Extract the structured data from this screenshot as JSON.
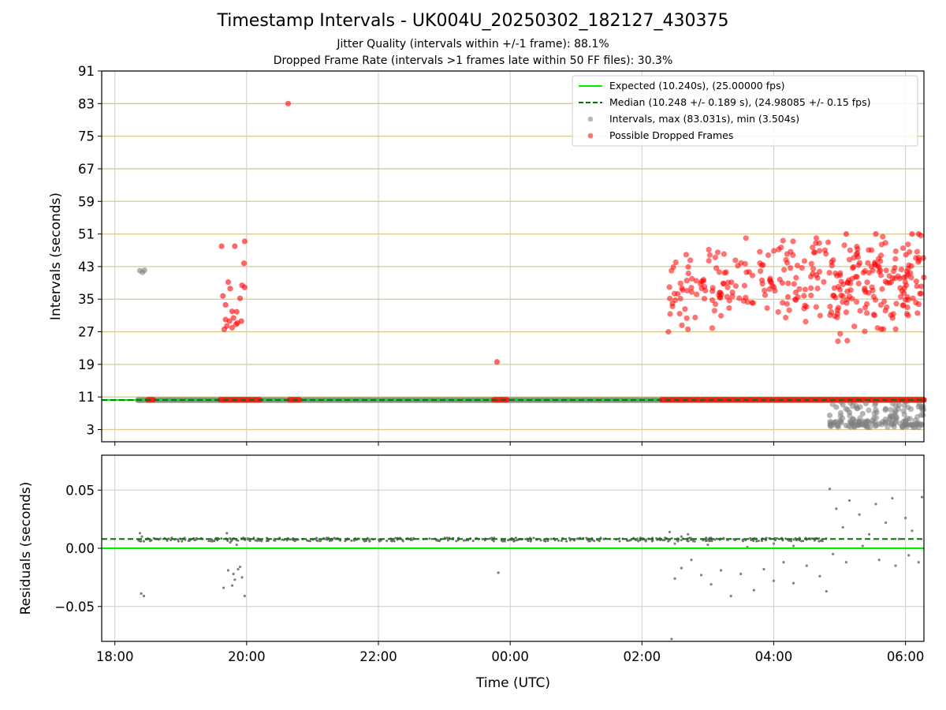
{
  "figure": {
    "title": "Timestamp Intervals - UK004U_20250302_182127_430375",
    "subtitle_1": "Jitter Quality (intervals within +/-1 frame): 88.1%",
    "subtitle_2": "Dropped Frame Rate (intervals >1 frames late within 50 FF files): 30.3%"
  },
  "chart_data": [
    {
      "type": "scatter",
      "title": "Timestamp Intervals - UK004U_20250302_182127_430375",
      "xlabel": "",
      "ylabel": "Intervals (seconds)",
      "x_ticks": [
        "18:00",
        "20:00",
        "22:00",
        "00:00",
        "02:00",
        "04:00",
        "06:00"
      ],
      "x_range_hours_utc": [
        17.8,
        30.28
      ],
      "ylim": [
        0,
        91
      ],
      "y_ticks": [
        3,
        11,
        19,
        27,
        35,
        43,
        51,
        59,
        67,
        75,
        83,
        91
      ],
      "grid": true,
      "legend_position": "top-right",
      "legend": [
        "Expected (10.240s), (25.00000 fps)",
        "Median (10.248 +/- 0.189 s), (24.98085 +/- 0.15 fps)",
        "Intervals, max (83.031s), min (3.504s)",
        "Possible Dropped Frames"
      ],
      "expected_interval": 10.24,
      "median_interval": 10.248,
      "baseline_band_hours": [
        18.35,
        30.28
      ],
      "series": [
        {
          "name": "Intervals, max (83.031s), min (3.504s)",
          "color": "#808080",
          "points": [
            [
              18.38,
              42.0
            ],
            [
              18.42,
              41.6
            ],
            [
              18.45,
              42.1
            ],
            [
              28.85,
              6.5
            ],
            [
              28.9,
              4.2
            ],
            [
              28.95,
              8.5
            ],
            [
              29.0,
              5.1
            ],
            [
              29.05,
              9.1
            ],
            [
              29.1,
              4.0
            ],
            [
              29.15,
              7.2
            ],
            [
              29.2,
              5.6
            ],
            [
              29.25,
              8.8
            ],
            [
              29.3,
              4.6
            ],
            [
              29.35,
              6.9
            ],
            [
              29.4,
              9.4
            ],
            [
              29.5,
              5.2
            ],
            [
              29.55,
              7.8
            ],
            [
              29.6,
              4.4
            ],
            [
              29.7,
              8.1
            ],
            [
              29.8,
              6.2
            ],
            [
              29.9,
              9.0
            ],
            [
              30.0,
              5.0
            ],
            [
              30.1,
              4.1
            ],
            [
              30.2,
              8.6
            ],
            [
              30.25,
              4.3
            ]
          ]
        },
        {
          "name": "Possible Dropped Frames",
          "color": "#ff0000",
          "points": [
            [
              20.63,
              83.0
            ],
            [
              23.8,
              19.6
            ],
            [
              19.62,
              48.0
            ],
            [
              19.82,
              48.0
            ],
            [
              19.97,
              49.2
            ],
            [
              19.96,
              43.8
            ],
            [
              19.64,
              35.8
            ],
            [
              19.72,
              39.2
            ],
            [
              19.75,
              37.6
            ],
            [
              19.93,
              38.4
            ],
            [
              19.97,
              37.9
            ],
            [
              19.9,
              35.2
            ],
            [
              19.68,
              33.6
            ],
            [
              19.78,
              32.0
            ],
            [
              19.85,
              31.9
            ],
            [
              19.68,
              30.0
            ],
            [
              19.74,
              29.6
            ],
            [
              19.8,
              30.4
            ],
            [
              19.86,
              29.2
            ],
            [
              19.92,
              29.6
            ],
            [
              19.7,
              28.4
            ],
            [
              19.78,
              28.0
            ],
            [
              19.84,
              28.8
            ],
            [
              19.66,
              27.6
            ],
            [
              30.2,
              51.0
            ],
            [
              30.1,
              51.0
            ],
            [
              29.55,
              51.0
            ],
            [
              29.1,
              51.0
            ]
          ]
        }
      ],
      "dropped_frame_bands_hours": [
        [
          18.5,
          18.58
        ],
        [
          19.6,
          20.2
        ],
        [
          20.65,
          20.8
        ],
        [
          23.75,
          23.95
        ],
        [
          26.3,
          30.28
        ]
      ],
      "dropped_frame_clusters": [
        {
          "x_range_hours": [
            26.4,
            28.85
          ],
          "y_range": [
            27,
            50
          ]
        },
        {
          "x_range_hours": [
            28.85,
            30.28
          ],
          "y_range": [
            24,
            52
          ]
        }
      ],
      "gray_band_hours": [
        28.85,
        30.28
      ],
      "gray_band_y_range": [
        3.5,
        10
      ]
    },
    {
      "type": "scatter",
      "xlabel": "Time (UTC)",
      "ylabel": "Residuals (seconds)",
      "x_ticks": [
        "18:00",
        "20:00",
        "22:00",
        "00:00",
        "02:00",
        "04:00",
        "06:00"
      ],
      "x_range_hours_utc": [
        17.8,
        30.28
      ],
      "ylim": [
        -0.08,
        0.08
      ],
      "y_ticks": [
        "0.05",
        "0.00",
        "−0.05"
      ],
      "grid": true,
      "expected_line": 0.0,
      "median_line": 0.008,
      "series": [
        {
          "name": "",
          "color": "#808080",
          "points": [
            [
              18.38,
              0.013
            ],
            [
              18.41,
              0.01
            ],
            [
              18.44,
              0.006
            ],
            [
              18.4,
              -0.039
            ],
            [
              18.44,
              -0.041
            ],
            [
              19.7,
              0.013
            ],
            [
              19.75,
              0.005
            ],
            [
              19.85,
              0.003
            ],
            [
              19.95,
              0.009
            ],
            [
              19.72,
              -0.019
            ],
            [
              19.8,
              -0.022
            ],
            [
              19.87,
              -0.018
            ],
            [
              19.93,
              -0.025
            ],
            [
              19.78,
              -0.032
            ],
            [
              19.65,
              -0.034
            ],
            [
              19.82,
              -0.027
            ],
            [
              19.97,
              -0.041
            ],
            [
              19.9,
              -0.016
            ],
            [
              23.82,
              -0.021
            ],
            [
              26.42,
              0.014
            ],
            [
              26.5,
              0.004
            ],
            [
              26.6,
              0.01
            ],
            [
              26.7,
              0.012
            ],
            [
              26.8,
              0.006
            ],
            [
              27.0,
              0.003
            ],
            [
              27.3,
              0.007
            ],
            [
              27.6,
              0.001
            ],
            [
              28.0,
              0.004
            ],
            [
              28.3,
              0.002
            ],
            [
              26.45,
              -0.078
            ],
            [
              26.5,
              -0.026
            ],
            [
              26.6,
              -0.017
            ],
            [
              26.75,
              -0.01
            ],
            [
              26.9,
              -0.023
            ],
            [
              27.05,
              -0.031
            ],
            [
              27.2,
              -0.019
            ],
            [
              27.35,
              -0.041
            ],
            [
              27.5,
              -0.022
            ],
            [
              27.7,
              -0.036
            ],
            [
              27.85,
              -0.018
            ],
            [
              28.0,
              -0.028
            ],
            [
              28.15,
              -0.012
            ],
            [
              28.3,
              -0.03
            ],
            [
              28.5,
              -0.015
            ],
            [
              28.7,
              -0.024
            ],
            [
              28.8,
              -0.037
            ],
            [
              28.85,
              0.051
            ],
            [
              28.95,
              0.034
            ],
            [
              29.05,
              0.018
            ],
            [
              29.15,
              0.041
            ],
            [
              29.3,
              0.029
            ],
            [
              29.45,
              0.012
            ],
            [
              29.55,
              0.038
            ],
            [
              29.7,
              0.022
            ],
            [
              29.8,
              0.043
            ],
            [
              29.9,
              0.008
            ],
            [
              30.0,
              0.026
            ],
            [
              30.1,
              0.015
            ],
            [
              30.25,
              0.044
            ],
            [
              28.9,
              -0.005
            ],
            [
              29.1,
              -0.012
            ],
            [
              29.35,
              0.002
            ],
            [
              29.6,
              -0.01
            ],
            [
              29.85,
              -0.015
            ],
            [
              30.05,
              -0.006
            ],
            [
              30.2,
              -0.012
            ]
          ]
        }
      ]
    }
  ]
}
